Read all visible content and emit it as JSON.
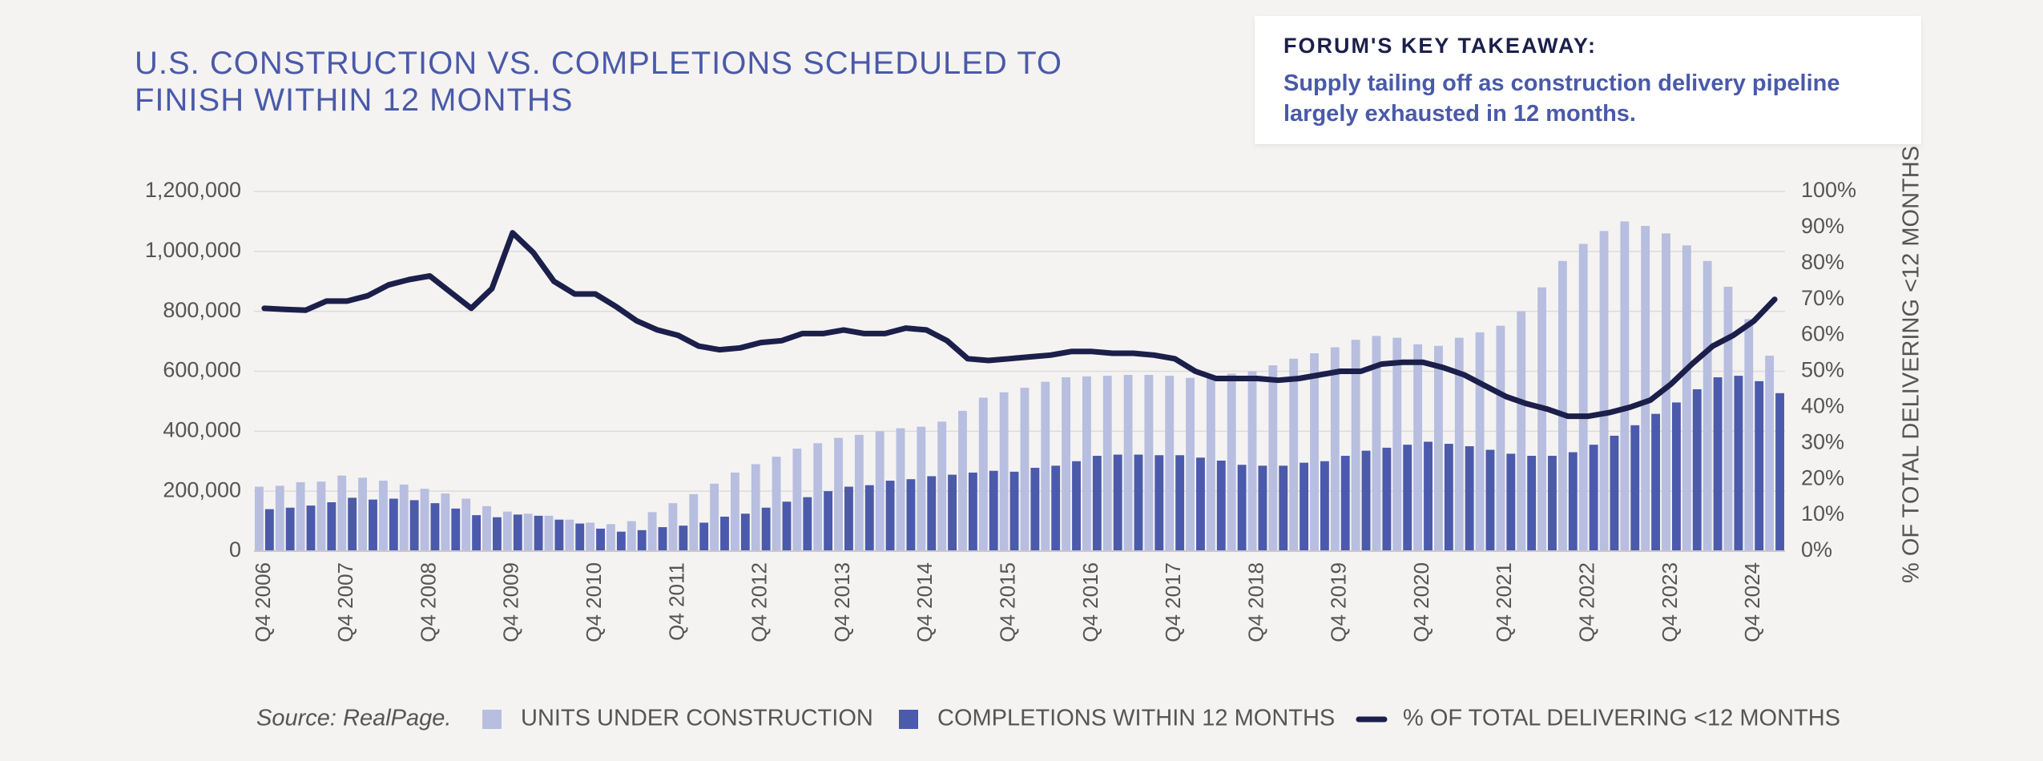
{
  "chart_data": {
    "type": "bar-line",
    "title": "U.S. CONSTRUCTION VS. COMPLETIONS SCHEDULED TO FINISH WITHIN 12 MONTHS",
    "takeaway_heading": "FORUM'S KEY TAKEAWAY:",
    "takeaway_text": "Supply tailing off as construction delivery pipeline largely exhausted in 12 months.",
    "source": "Source: RealPage.",
    "y2_label": "% OF TOTAL DELIVERING <12 MONTHS",
    "categories": [
      "Q4 2006",
      null,
      null,
      null,
      "Q4 2007",
      null,
      null,
      null,
      "Q4 2008",
      null,
      null,
      null,
      "Q4 2009",
      null,
      null,
      null,
      "Q4 2010",
      null,
      null,
      null,
      "Q4 2011",
      null,
      null,
      null,
      "Q4 2012",
      null,
      null,
      null,
      "Q4 2013",
      null,
      null,
      null,
      "Q4 2014",
      null,
      null,
      null,
      "Q4 2015",
      null,
      null,
      null,
      "Q4 2016",
      null,
      null,
      null,
      "Q4 2017",
      null,
      null,
      null,
      "Q4 2018",
      null,
      null,
      null,
      "Q4 2019",
      null,
      null,
      null,
      "Q4 2020",
      null,
      null,
      null,
      "Q4 2021",
      null,
      null,
      null,
      "Q4 2022",
      null,
      null,
      null,
      "Q4 2023",
      null,
      null,
      null,
      "Q4 2024",
      null
    ],
    "series": [
      {
        "name": "UNITS UNDER CONSTRUCTION",
        "color": "#b7bedf",
        "legend_mark": "square",
        "values": [
          215000,
          218000,
          230000,
          232000,
          252000,
          245000,
          235000,
          222000,
          208000,
          192000,
          175000,
          150000,
          132000,
          125000,
          118000,
          105000,
          95000,
          90000,
          100000,
          130000,
          160000,
          190000,
          225000,
          262000,
          290000,
          315000,
          342000,
          360000,
          378000,
          388000,
          400000,
          410000,
          415000,
          432000,
          468000,
          512000,
          530000,
          545000,
          565000,
          580000,
          583000,
          585000,
          588000,
          588000,
          585000,
          578000,
          582000,
          592000,
          600000,
          620000,
          642000,
          660000,
          680000,
          705000,
          718000,
          712000,
          690000,
          685000,
          712000,
          730000,
          752000,
          800000,
          880000,
          968000,
          1025000,
          1068000,
          1100000,
          1085000,
          1060000,
          1020000,
          968000,
          882000,
          774000,
          652000
        ]
      },
      {
        "name": "COMPLETIONS WITHIN 12 MONTHS",
        "color": "#4b5aab",
        "legend_mark": "square",
        "values": [
          140000,
          145000,
          152000,
          163000,
          178000,
          172000,
          175000,
          170000,
          160000,
          142000,
          120000,
          113000,
          122000,
          118000,
          105000,
          92000,
          75000,
          65000,
          70000,
          80000,
          85000,
          95000,
          115000,
          125000,
          145000,
          165000,
          180000,
          200000,
          215000,
          220000,
          235000,
          240000,
          250000,
          255000,
          262000,
          268000,
          265000,
          278000,
          285000,
          300000,
          318000,
          322000,
          322000,
          320000,
          320000,
          312000,
          302000,
          288000,
          285000,
          285000,
          295000,
          300000,
          318000,
          335000,
          345000,
          355000,
          365000,
          358000,
          350000,
          338000,
          325000,
          318000,
          318000,
          330000,
          355000,
          385000,
          420000,
          458000,
          496000,
          540000,
          580000,
          585000,
          567000,
          527000
        ]
      },
      {
        "name": "% OF TOTAL DELIVERING <12 MONTHS",
        "color": "#1b1f4a",
        "legend_mark": "line",
        "axis": "y2",
        "values": [
          67.5,
          67.2,
          67,
          69.5,
          69.5,
          71,
          74,
          75.5,
          76.5,
          72,
          67.5,
          73,
          88.5,
          83,
          75,
          71.5,
          71.5,
          68,
          64,
          61.5,
          60,
          57,
          56,
          56.5,
          58,
          58.5,
          60.5,
          60.5,
          61.5,
          60.5,
          60.5,
          62,
          61.5,
          58.5,
          53.5,
          53,
          53.5,
          54,
          54.5,
          55.5,
          55.5,
          55,
          55,
          54.5,
          53.5,
          50,
          48,
          48,
          48,
          47.5,
          48,
          49,
          50,
          50,
          52,
          52.5,
          52.5,
          51,
          49,
          46,
          43,
          41,
          39.5,
          37.5,
          37.5,
          38.5,
          40,
          42,
          46.5,
          52,
          57,
          60,
          64,
          70
        ]
      }
    ],
    "ylim": [
      0,
      1200000
    ],
    "yticks": [
      0,
      {
        "value": 200000,
        "label": "200,000"
      },
      {
        "value": 400000,
        "label": "400,000"
      },
      {
        "value": 600000,
        "label": "600,000"
      },
      {
        "value": 800000,
        "label": "800,000"
      },
      {
        "value": 1000000,
        "label": "1,000,000"
      },
      {
        "value": 1200000,
        "label": "1,200,000"
      }
    ],
    "y2lim": [
      0,
      100
    ],
    "y2ticks": [
      {
        "value": 0,
        "label": "0%"
      },
      {
        "value": 10,
        "label": "10%"
      },
      {
        "value": 20,
        "label": "20%"
      },
      {
        "value": 30,
        "label": "30%"
      },
      {
        "value": 40,
        "label": "40%"
      },
      {
        "value": 50,
        "label": "50%"
      },
      {
        "value": 60,
        "label": "60%"
      },
      {
        "value": 70,
        "label": "70%"
      },
      {
        "value": 80,
        "label": "80%"
      },
      {
        "value": 90,
        "label": "90%"
      },
      {
        "value": 100,
        "label": "100%"
      }
    ],
    "grid": true
  }
}
